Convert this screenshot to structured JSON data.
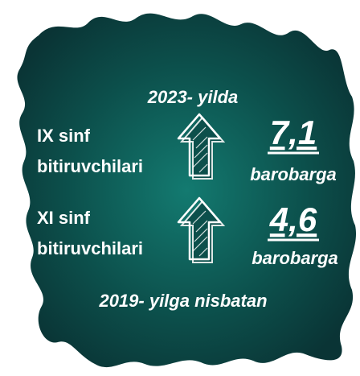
{
  "header": {
    "title": "2023- yilda"
  },
  "rows": [
    {
      "label_lines": [
        "IX sinf",
        "bitiruvchilari"
      ],
      "value": "7,1",
      "unit": "barobarga"
    },
    {
      "label_lines": [
        "XI sinf",
        "bitiruvchilari"
      ],
      "value": "4,6",
      "unit": "barobarga"
    }
  ],
  "footer": "2019- yilga nisbatan"
}
